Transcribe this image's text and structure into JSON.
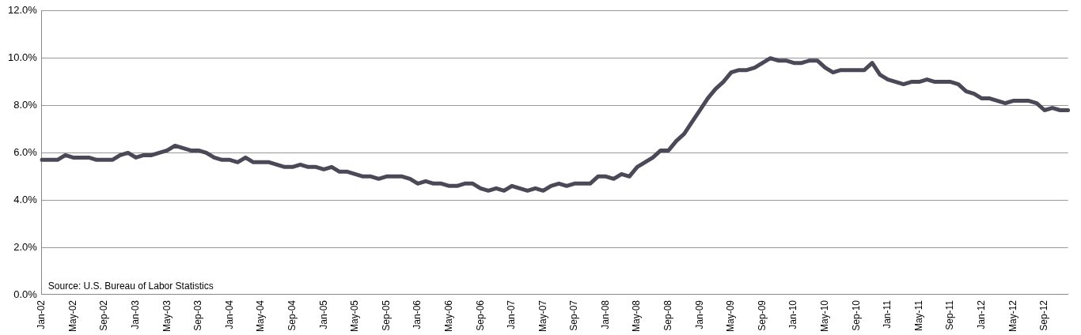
{
  "chart_data": {
    "type": "line",
    "categories": [
      "Jan-02",
      null,
      null,
      null,
      "May-02",
      null,
      null,
      null,
      "Sep-02",
      null,
      null,
      null,
      "Jan-03",
      null,
      null,
      null,
      "May-03",
      null,
      null,
      null,
      "Sep-03",
      null,
      null,
      null,
      "Jan-04",
      null,
      null,
      null,
      "May-04",
      null,
      null,
      null,
      "Sep-04",
      null,
      null,
      null,
      "Jan-05",
      null,
      null,
      null,
      "May-05",
      null,
      null,
      null,
      "Sep-05",
      null,
      null,
      null,
      "Jan-06",
      null,
      null,
      null,
      "May-06",
      null,
      null,
      null,
      "Sep-06",
      null,
      null,
      null,
      "Jan-07",
      null,
      null,
      null,
      "May-07",
      null,
      null,
      null,
      "Sep-07",
      null,
      null,
      null,
      "Jan-08",
      null,
      null,
      null,
      "May-08",
      null,
      null,
      null,
      "Sep-08",
      null,
      null,
      null,
      "Jan-09",
      null,
      null,
      null,
      "May-09",
      null,
      null,
      null,
      "Sep-09",
      null,
      null,
      null,
      "Jan-10",
      null,
      null,
      null,
      "May-10",
      null,
      null,
      null,
      "Sep-10",
      null,
      null,
      null,
      "Jan-11",
      null,
      null,
      null,
      "May-11",
      null,
      null,
      null,
      "Sep-11",
      null,
      null,
      null,
      "Jan-12",
      null,
      null,
      null,
      "May-12",
      null,
      null,
      null,
      "Sep-12",
      null,
      null,
      null
    ],
    "series": [
      {
        "color": "#4b4858",
        "values": [
          5.7,
          5.7,
          5.7,
          5.9,
          5.8,
          5.8,
          5.8,
          5.7,
          5.7,
          5.7,
          5.9,
          6.0,
          5.8,
          5.9,
          5.9,
          6.0,
          6.1,
          6.3,
          6.2,
          6.1,
          6.1,
          6.0,
          5.8,
          5.7,
          5.7,
          5.6,
          5.8,
          5.6,
          5.6,
          5.6,
          5.5,
          5.4,
          5.4,
          5.5,
          5.4,
          5.4,
          5.3,
          5.4,
          5.2,
          5.2,
          5.1,
          5.0,
          5.0,
          4.9,
          5.0,
          5.0,
          5.0,
          4.9,
          4.7,
          4.8,
          4.7,
          4.7,
          4.6,
          4.6,
          4.7,
          4.7,
          4.5,
          4.4,
          4.5,
          4.4,
          4.6,
          4.5,
          4.4,
          4.5,
          4.4,
          4.6,
          4.7,
          4.6,
          4.7,
          4.7,
          4.7,
          5.0,
          5.0,
          4.9,
          5.1,
          5.0,
          5.4,
          5.6,
          5.8,
          6.1,
          6.1,
          6.5,
          6.8,
          7.3,
          7.8,
          8.3,
          8.7,
          9.0,
          9.4,
          9.5,
          9.5,
          9.6,
          9.8,
          10.0,
          9.9,
          9.9,
          9.8,
          9.8,
          9.9,
          9.9,
          9.6,
          9.4,
          9.5,
          9.5,
          9.5,
          9.5,
          9.8,
          9.3,
          9.1,
          9.0,
          8.9,
          9.0,
          9.0,
          9.1,
          9.0,
          9.0,
          9.0,
          8.9,
          8.6,
          8.5,
          8.3,
          8.3,
          8.2,
          8.1,
          8.2,
          8.2,
          8.2,
          8.1,
          7.8,
          7.9,
          7.8,
          7.8
        ]
      }
    ],
    "ylim": [
      0,
      12
    ],
    "yticks": [
      {
        "value": 0,
        "label": "0.0%"
      },
      {
        "value": 2,
        "label": "2.0%"
      },
      {
        "value": 4,
        "label": "4.0%"
      },
      {
        "value": 6,
        "label": "6.0%"
      },
      {
        "value": 8,
        "label": "8.0%"
      },
      {
        "value": 10,
        "label": "10.0%"
      },
      {
        "value": 12,
        "label": "12.0%"
      }
    ],
    "grid": "y",
    "legend": false,
    "marker": "none",
    "line_style": "solid",
    "annotations": [
      "Source: U.S. Bureau of Labor Statistics"
    ]
  }
}
